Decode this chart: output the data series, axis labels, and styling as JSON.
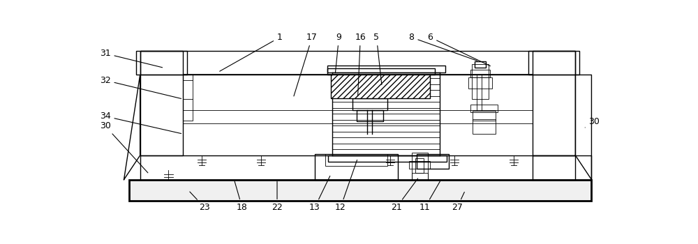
{
  "fig_width": 10.0,
  "fig_height": 3.5,
  "dpi": 100,
  "bg_color": "#ffffff",
  "line_color": "#000000",
  "lw": 1.0,
  "tlw": 0.6,
  "thk": 2.0
}
